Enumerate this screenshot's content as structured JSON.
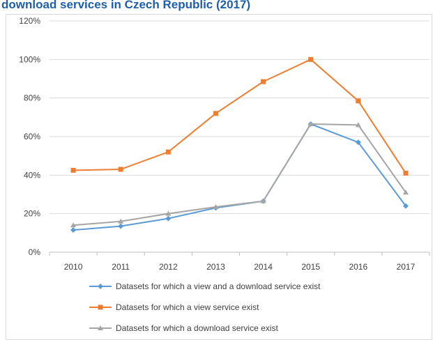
{
  "chart_data": {
    "type": "line",
    "title": "download services in Czech Republic (2017)",
    "categories": [
      "2010",
      "2011",
      "2012",
      "2013",
      "2014",
      "2015",
      "2016",
      "2017"
    ],
    "series": [
      {
        "name": "Datasets for which a view and a download service exist",
        "color": "#5b9bd5",
        "marker": "diamond",
        "values": [
          11.5,
          13.5,
          17.5,
          23,
          26.5,
          66.5,
          57,
          24
        ]
      },
      {
        "name": "Datasets for which a view service exist",
        "color": "#ed7d31",
        "marker": "square",
        "values": [
          42.5,
          43,
          52,
          72,
          88.5,
          100,
          78.5,
          41
        ]
      },
      {
        "name": "Datasets for which a download service exist",
        "color": "#a5a5a5",
        "marker": "triangle",
        "values": [
          14,
          16,
          20,
          23.5,
          26.5,
          66.5,
          66,
          31
        ]
      }
    ],
    "ylim": [
      0,
      120
    ],
    "yticks": [
      {
        "value": 0,
        "label": "0%"
      },
      {
        "value": 20,
        "label": "20%"
      },
      {
        "value": 40,
        "label": "40%"
      },
      {
        "value": 60,
        "label": "60%"
      },
      {
        "value": 80,
        "label": "80%"
      },
      {
        "value": 100,
        "label": "100%"
      },
      {
        "value": 120,
        "label": "120%"
      }
    ],
    "grid": true,
    "legend": "bottom"
  }
}
